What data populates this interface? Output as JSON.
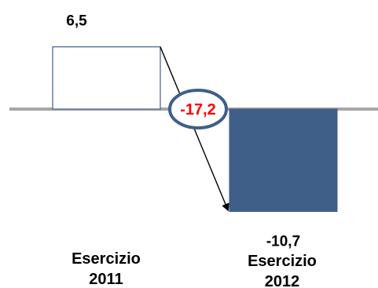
{
  "chart_data": {
    "type": "bar",
    "categories": [
      "Esercizio 2011",
      "Esercizio 2012"
    ],
    "category_lines": [
      [
        "Esercizio",
        "2011"
      ],
      [
        "Esercizio",
        "2012"
      ]
    ],
    "values": [
      6.5,
      -10.7
    ],
    "value_labels": [
      "6,5",
      "-10,7"
    ],
    "difference": -17.2,
    "difference_label": "-17,2",
    "grid": false,
    "legend": "none",
    "colors": {
      "bar_2011_fill": "#ffffff",
      "bar_2011_stroke": "#3e5f8a",
      "bar_2012_fill": "#3f5f88",
      "baseline": "#a6a6a6",
      "ellipse_stroke": "#3e5f8a",
      "difference_text": "#ff0000",
      "arrow": "#000000"
    }
  }
}
